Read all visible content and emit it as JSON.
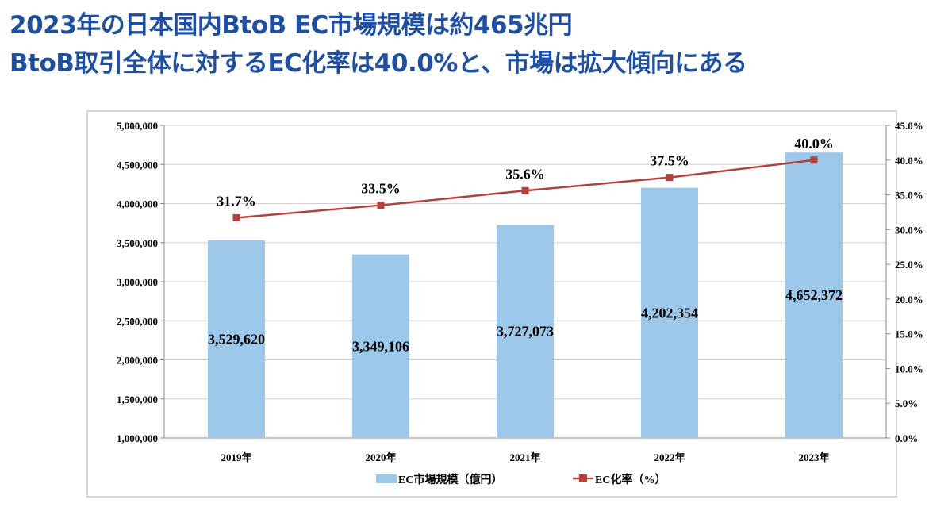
{
  "header": {
    "title_line1": "2023年の日本国内BtoB EC市場規模は約465兆円",
    "title_line2": "BtoB取引全体に対するEC化率は40.0%と、市場は拡大傾向にある"
  },
  "chart_data": {
    "type": "bar+line",
    "categories": [
      "2019年",
      "2020年",
      "2021年",
      "2022年",
      "2023年"
    ],
    "series": [
      {
        "name": "EC市場規模（億円）",
        "type": "bar",
        "axis": "left",
        "values": [
          3529620,
          3349106,
          3727073,
          4202354,
          4652372
        ],
        "labels": [
          "3,529,620",
          "3,349,106",
          "3,727,073",
          "4,202,354",
          "4,652,372"
        ],
        "color": "#9dc8ea"
      },
      {
        "name": "EC化率（%）",
        "type": "line",
        "axis": "right",
        "values": [
          31.7,
          33.5,
          35.6,
          37.5,
          40.0
        ],
        "labels": [
          "31.7%",
          "33.5%",
          "35.6%",
          "37.5%",
          "40.0%"
        ],
        "color": "#b5413c"
      }
    ],
    "left_axis": {
      "ylim": [
        1000000,
        5000000
      ],
      "ticks": [
        "1,000,000",
        "1,500,000",
        "2,000,000",
        "2,500,000",
        "3,000,000",
        "3,500,000",
        "4,000,000",
        "4,500,000",
        "5,000,000"
      ]
    },
    "right_axis": {
      "ylim": [
        0,
        45
      ],
      "ticks": [
        "0.0%",
        "5.0%",
        "10.0%",
        "15.0%",
        "20.0%",
        "25.0%",
        "30.0%",
        "35.0%",
        "40.0%",
        "45.0%"
      ]
    },
    "grid": true,
    "legend": "bottom"
  }
}
